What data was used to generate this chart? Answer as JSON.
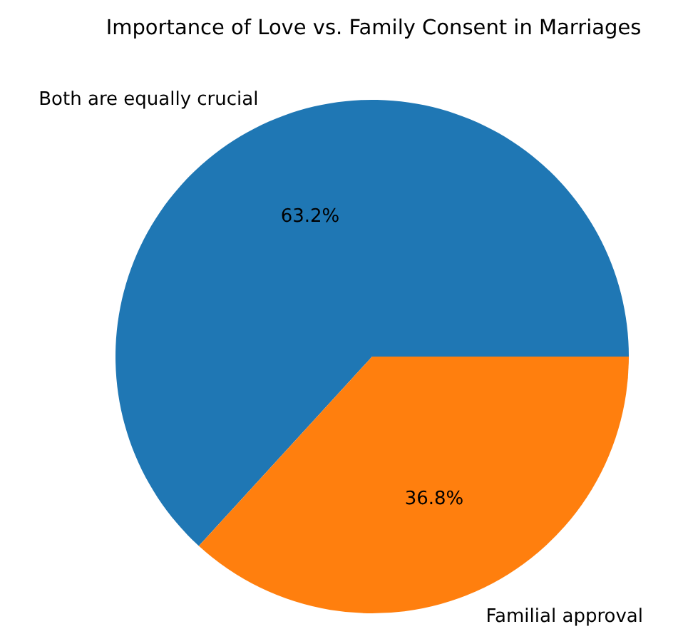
{
  "chart_data": {
    "type": "pie",
    "title": "Importance of Love vs. Family Consent in Marriages",
    "categories": [
      "Both are equally crucial",
      "Familial approval"
    ],
    "values": [
      63.2,
      36.8
    ],
    "colors": [
      "#1f77b4",
      "#ff7f0e"
    ],
    "value_labels": [
      "63.2%",
      "36.8%"
    ]
  }
}
